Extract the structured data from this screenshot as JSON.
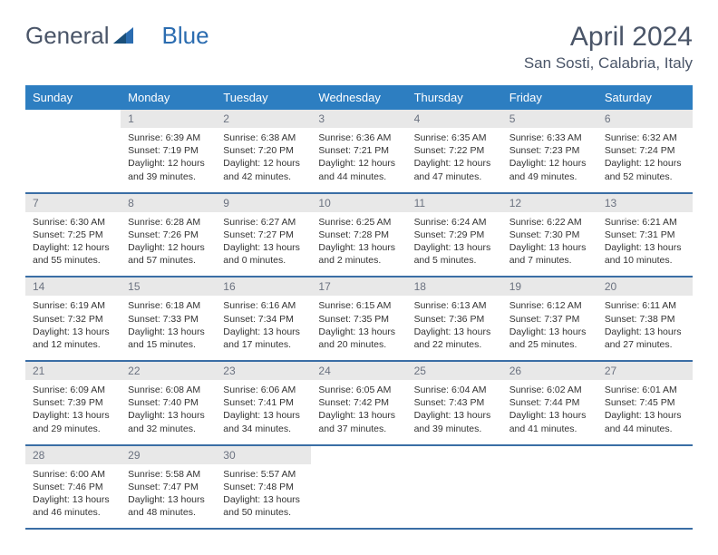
{
  "logo": {
    "text1": "General",
    "text2": "Blue"
  },
  "title": "April 2024",
  "location": "San Sosti, Calabria, Italy",
  "colors": {
    "header_bg": "#2d7ec1",
    "header_text": "#ffffff",
    "daynum_bg": "#e8e8e8",
    "daynum_text": "#6b7280",
    "body_text": "#333333",
    "title_text": "#4a5568",
    "row_border": "#3a6ea5",
    "logo_accent": "#2b6cb0"
  },
  "typography": {
    "title_size": 30,
    "loc_size": 17,
    "dayhead_size": 13,
    "daynum_size": 12,
    "data_size": 10.5
  },
  "weekdays": [
    "Sunday",
    "Monday",
    "Tuesday",
    "Wednesday",
    "Thursday",
    "Friday",
    "Saturday"
  ],
  "month_start_weekday": 1,
  "days_in_month": 30,
  "days": [
    {
      "n": 1,
      "sunrise": "6:39 AM",
      "sunset": "7:19 PM",
      "daylight": "12 hours and 39 minutes."
    },
    {
      "n": 2,
      "sunrise": "6:38 AM",
      "sunset": "7:20 PM",
      "daylight": "12 hours and 42 minutes."
    },
    {
      "n": 3,
      "sunrise": "6:36 AM",
      "sunset": "7:21 PM",
      "daylight": "12 hours and 44 minutes."
    },
    {
      "n": 4,
      "sunrise": "6:35 AM",
      "sunset": "7:22 PM",
      "daylight": "12 hours and 47 minutes."
    },
    {
      "n": 5,
      "sunrise": "6:33 AM",
      "sunset": "7:23 PM",
      "daylight": "12 hours and 49 minutes."
    },
    {
      "n": 6,
      "sunrise": "6:32 AM",
      "sunset": "7:24 PM",
      "daylight": "12 hours and 52 minutes."
    },
    {
      "n": 7,
      "sunrise": "6:30 AM",
      "sunset": "7:25 PM",
      "daylight": "12 hours and 55 minutes."
    },
    {
      "n": 8,
      "sunrise": "6:28 AM",
      "sunset": "7:26 PM",
      "daylight": "12 hours and 57 minutes."
    },
    {
      "n": 9,
      "sunrise": "6:27 AM",
      "sunset": "7:27 PM",
      "daylight": "13 hours and 0 minutes."
    },
    {
      "n": 10,
      "sunrise": "6:25 AM",
      "sunset": "7:28 PM",
      "daylight": "13 hours and 2 minutes."
    },
    {
      "n": 11,
      "sunrise": "6:24 AM",
      "sunset": "7:29 PM",
      "daylight": "13 hours and 5 minutes."
    },
    {
      "n": 12,
      "sunrise": "6:22 AM",
      "sunset": "7:30 PM",
      "daylight": "13 hours and 7 minutes."
    },
    {
      "n": 13,
      "sunrise": "6:21 AM",
      "sunset": "7:31 PM",
      "daylight": "13 hours and 10 minutes."
    },
    {
      "n": 14,
      "sunrise": "6:19 AM",
      "sunset": "7:32 PM",
      "daylight": "13 hours and 12 minutes."
    },
    {
      "n": 15,
      "sunrise": "6:18 AM",
      "sunset": "7:33 PM",
      "daylight": "13 hours and 15 minutes."
    },
    {
      "n": 16,
      "sunrise": "6:16 AM",
      "sunset": "7:34 PM",
      "daylight": "13 hours and 17 minutes."
    },
    {
      "n": 17,
      "sunrise": "6:15 AM",
      "sunset": "7:35 PM",
      "daylight": "13 hours and 20 minutes."
    },
    {
      "n": 18,
      "sunrise": "6:13 AM",
      "sunset": "7:36 PM",
      "daylight": "13 hours and 22 minutes."
    },
    {
      "n": 19,
      "sunrise": "6:12 AM",
      "sunset": "7:37 PM",
      "daylight": "13 hours and 25 minutes."
    },
    {
      "n": 20,
      "sunrise": "6:11 AM",
      "sunset": "7:38 PM",
      "daylight": "13 hours and 27 minutes."
    },
    {
      "n": 21,
      "sunrise": "6:09 AM",
      "sunset": "7:39 PM",
      "daylight": "13 hours and 29 minutes."
    },
    {
      "n": 22,
      "sunrise": "6:08 AM",
      "sunset": "7:40 PM",
      "daylight": "13 hours and 32 minutes."
    },
    {
      "n": 23,
      "sunrise": "6:06 AM",
      "sunset": "7:41 PM",
      "daylight": "13 hours and 34 minutes."
    },
    {
      "n": 24,
      "sunrise": "6:05 AM",
      "sunset": "7:42 PM",
      "daylight": "13 hours and 37 minutes."
    },
    {
      "n": 25,
      "sunrise": "6:04 AM",
      "sunset": "7:43 PM",
      "daylight": "13 hours and 39 minutes."
    },
    {
      "n": 26,
      "sunrise": "6:02 AM",
      "sunset": "7:44 PM",
      "daylight": "13 hours and 41 minutes."
    },
    {
      "n": 27,
      "sunrise": "6:01 AM",
      "sunset": "7:45 PM",
      "daylight": "13 hours and 44 minutes."
    },
    {
      "n": 28,
      "sunrise": "6:00 AM",
      "sunset": "7:46 PM",
      "daylight": "13 hours and 46 minutes."
    },
    {
      "n": 29,
      "sunrise": "5:58 AM",
      "sunset": "7:47 PM",
      "daylight": "13 hours and 48 minutes."
    },
    {
      "n": 30,
      "sunrise": "5:57 AM",
      "sunset": "7:48 PM",
      "daylight": "13 hours and 50 minutes."
    }
  ]
}
